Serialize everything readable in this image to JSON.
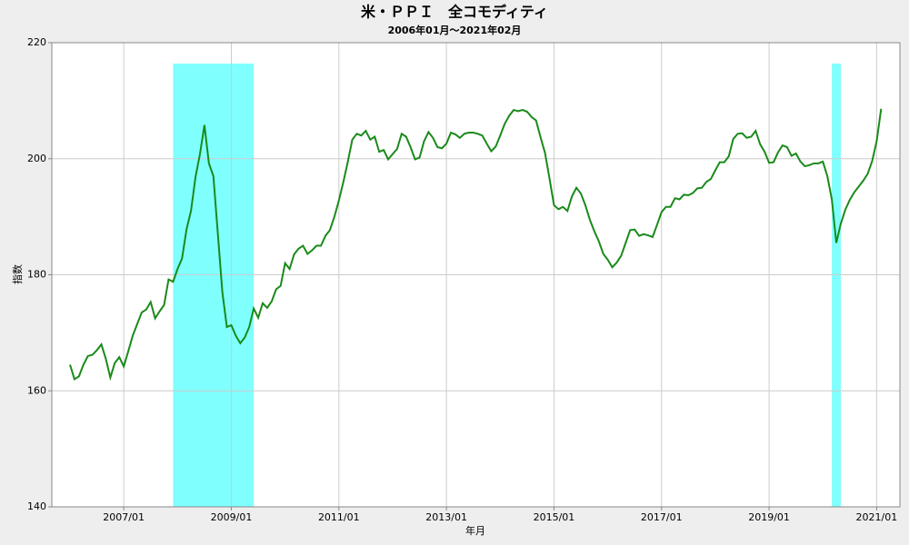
{
  "chart_data": {
    "type": "line",
    "title": "米・ＰＰＩ　全コモディティ",
    "subtitle": "2006年01月～2021年02月",
    "x_label": "年月",
    "y_label": "指数",
    "x": [
      "2006/01",
      "2006/02",
      "2006/03",
      "2006/04",
      "2006/05",
      "2006/06",
      "2006/07",
      "2006/08",
      "2006/09",
      "2006/10",
      "2006/11",
      "2006/12",
      "2007/01",
      "2007/02",
      "2007/03",
      "2007/04",
      "2007/05",
      "2007/06",
      "2007/07",
      "2007/08",
      "2007/09",
      "2007/10",
      "2007/11",
      "2007/12",
      "2008/01",
      "2008/02",
      "2008/03",
      "2008/04",
      "2008/05",
      "2008/06",
      "2008/07",
      "2008/08",
      "2008/09",
      "2008/10",
      "2008/11",
      "2008/12",
      "2009/01",
      "2009/02",
      "2009/03",
      "2009/04",
      "2009/05",
      "2009/06",
      "2009/07",
      "2009/08",
      "2009/09",
      "2009/10",
      "2009/11",
      "2009/12",
      "2010/01",
      "2010/02",
      "2010/03",
      "2010/04",
      "2010/05",
      "2010/06",
      "2010/07",
      "2010/08",
      "2010/09",
      "2010/10",
      "2010/11",
      "2010/12",
      "2011/01",
      "2011/02",
      "2011/03",
      "2011/04",
      "2011/05",
      "2011/06",
      "2011/07",
      "2011/08",
      "2011/09",
      "2011/10",
      "2011/11",
      "2011/12",
      "2012/01",
      "2012/02",
      "2012/03",
      "2012/04",
      "2012/05",
      "2012/06",
      "2012/07",
      "2012/08",
      "2012/09",
      "2012/10",
      "2012/11",
      "2012/12",
      "2013/01",
      "2013/02",
      "2013/03",
      "2013/04",
      "2013/05",
      "2013/06",
      "2013/07",
      "2013/08",
      "2013/09",
      "2013/10",
      "2013/11",
      "2013/12",
      "2014/01",
      "2014/02",
      "2014/03",
      "2014/04",
      "2014/05",
      "2014/06",
      "2014/07",
      "2014/08",
      "2014/09",
      "2014/10",
      "2014/11",
      "2014/12",
      "2015/01",
      "2015/02",
      "2015/03",
      "2015/04",
      "2015/05",
      "2015/06",
      "2015/07",
      "2015/08",
      "2015/09",
      "2015/10",
      "2015/11",
      "2015/12",
      "2016/01",
      "2016/02",
      "2016/03",
      "2016/04",
      "2016/05",
      "2016/06",
      "2016/07",
      "2016/08",
      "2016/09",
      "2016/10",
      "2016/11",
      "2016/12",
      "2017/01",
      "2017/02",
      "2017/03",
      "2017/04",
      "2017/05",
      "2017/06",
      "2017/07",
      "2017/08",
      "2017/09",
      "2017/10",
      "2017/11",
      "2017/12",
      "2018/01",
      "2018/02",
      "2018/03",
      "2018/04",
      "2018/05",
      "2018/06",
      "2018/07",
      "2018/08",
      "2018/09",
      "2018/10",
      "2018/11",
      "2018/12",
      "2019/01",
      "2019/02",
      "2019/03",
      "2019/04",
      "2019/05",
      "2019/06",
      "2019/07",
      "2019/08",
      "2019/09",
      "2019/10",
      "2019/11",
      "2019/12",
      "2020/01",
      "2020/02",
      "2020/03",
      "2020/04",
      "2020/05",
      "2020/06",
      "2020/07",
      "2020/08",
      "2020/09",
      "2020/10",
      "2020/11",
      "2020/12",
      "2021/01",
      "2021/02"
    ],
    "series": [
      {
        "color": "#1a8a1a",
        "values": [
          164.5,
          162,
          162.5,
          164.5,
          166,
          166.2,
          167,
          168,
          165.5,
          162.3,
          164.8,
          165.8,
          164.2,
          166.8,
          169.5,
          171.5,
          173.5,
          174,
          175.3,
          172.5,
          173.7,
          174.8,
          179.2,
          178.8,
          181,
          182.8,
          187.8,
          191,
          196.8,
          200.8,
          205.8,
          199.2,
          197,
          187,
          177,
          171,
          171.3,
          169.5,
          168.2,
          169.2,
          171,
          174.2,
          172.6,
          175.1,
          174.3,
          175.4,
          177.5,
          178.1,
          182,
          181,
          183.5,
          184.5,
          185,
          183.6,
          184.2,
          185,
          185,
          186.7,
          187.7,
          190,
          192.8,
          196,
          199.5,
          203.3,
          204.3,
          204,
          204.8,
          203.3,
          203.8,
          201.2,
          201.5,
          199.9,
          200.8,
          201.7,
          204.3,
          203.8,
          202,
          199.9,
          200.2,
          203,
          204.6,
          203.6,
          202,
          201.8,
          202.6,
          204.5,
          204.2,
          203.6,
          204.3,
          204.5,
          204.5,
          204.3,
          204,
          202.6,
          201.3,
          202.1,
          204,
          206,
          207.4,
          208.4,
          208.2,
          208.4,
          208.1,
          207.2,
          206.6,
          203.7,
          201,
          196.6,
          192,
          191.3,
          191.7,
          191,
          193.5,
          195,
          194,
          192,
          189.5,
          187.5,
          185.8,
          183.6,
          182.6,
          181.3,
          182.1,
          183.3,
          185.5,
          187.7,
          187.8,
          186.7,
          187,
          186.8,
          186.5,
          188.6,
          190.8,
          191.7,
          191.7,
          193.2,
          193,
          193.8,
          193.7,
          194.1,
          194.9,
          195,
          196,
          196.5,
          198,
          199.4,
          199.4,
          200.4,
          203.4,
          204.3,
          204.4,
          203.6,
          203.8,
          204.8,
          202.5,
          201.2,
          199.3,
          199.4,
          201.1,
          202.3,
          202,
          200.5,
          200.9,
          199.5,
          198.7,
          198.9,
          199.2,
          199.2,
          199.5,
          197,
          193,
          185.5,
          188.8,
          191.2,
          192.9,
          194.2,
          195.2,
          196.2,
          197.4,
          199.6,
          203,
          208.6
        ]
      }
    ],
    "shaded": [
      [
        "2007/12",
        "2009/06"
      ],
      [
        "2020/03",
        "2020/05"
      ]
    ],
    "shade_color": "#80ffff",
    "xticks": [
      "2007/01",
      "2009/01",
      "2011/01",
      "2013/01",
      "2015/01",
      "2017/01",
      "2019/01",
      "2021/01"
    ],
    "ylim": [
      140,
      220
    ],
    "yticks": [
      140,
      160,
      180,
      200,
      220
    ],
    "grid": true
  }
}
